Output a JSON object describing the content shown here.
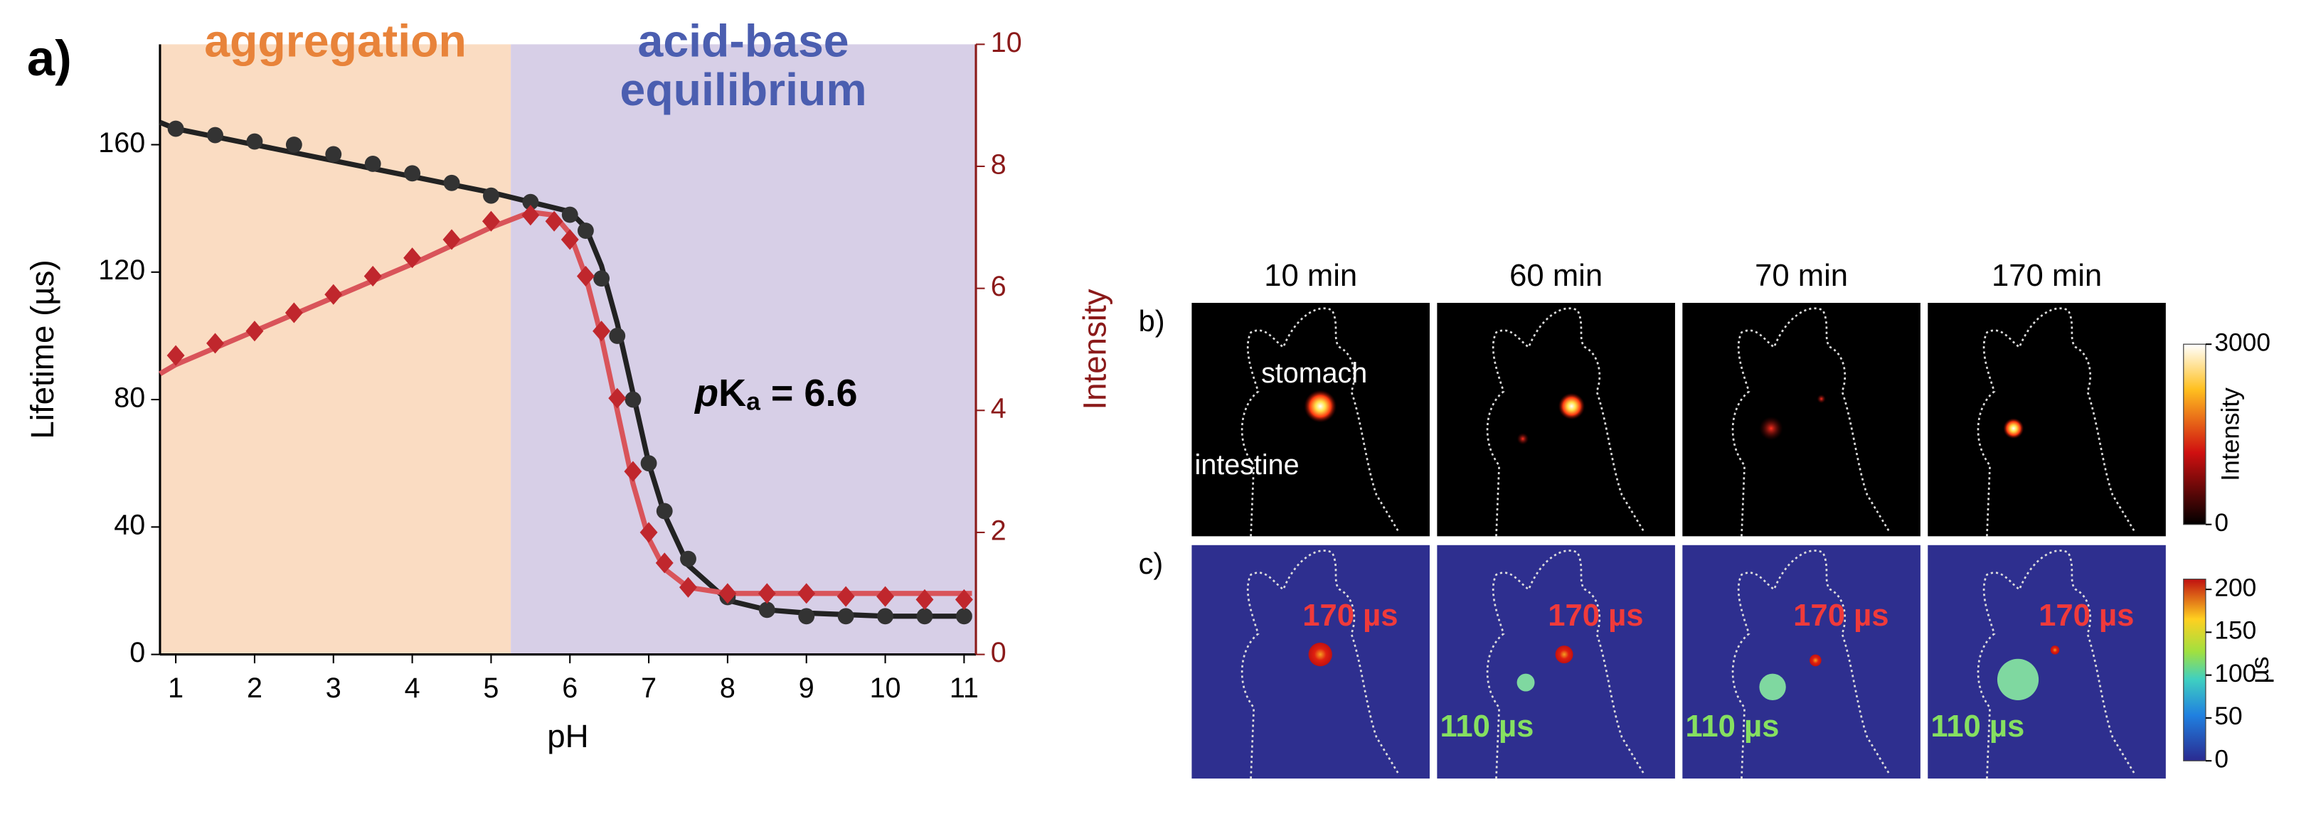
{
  "chart_data": {
    "type": "line",
    "panel_label": "a)",
    "xlabel": "pH",
    "ylabel": "Lifetime (µs)",
    "y2label": "Intensity",
    "y2color": "#8b1a1a",
    "xlim": [
      0.8,
      11.15
    ],
    "xticks": [
      1,
      2,
      3,
      4,
      5,
      6,
      7,
      8,
      9,
      10,
      11
    ],
    "ylim": [
      0,
      191.5
    ],
    "yticks": [
      0,
      40,
      80,
      120,
      160
    ],
    "y2lim": [
      0,
      10
    ],
    "y2ticks": [
      0,
      2,
      4,
      6,
      8,
      10
    ],
    "regions": [
      {
        "label": [
          "aggregation"
        ],
        "xlim": [
          0.8,
          5.25
        ],
        "color": "#fadcc2",
        "text_color": "#e8833a"
      },
      {
        "label": [
          "acid-base",
          "equilibrium"
        ],
        "xlim": [
          5.25,
          11.15
        ],
        "color": "#d7cfe7",
        "text_color": "#4b5eb0"
      }
    ],
    "annotation": [
      "p",
      "K",
      "a",
      " = 6.6"
    ],
    "series": [
      {
        "color": "#222222",
        "marker": "none",
        "x": [
          0.8,
          1,
          2,
          3,
          4,
          5,
          5.5,
          6,
          6.2,
          6.4,
          6.6,
          6.8,
          7,
          7.2,
          7.5,
          8,
          8.5,
          9,
          10,
          11.1
        ],
        "values": [
          167,
          165,
          160,
          155,
          150,
          145,
          142,
          139,
          134,
          122,
          104,
          82,
          60,
          44,
          28,
          17,
          14,
          13,
          12,
          12
        ]
      },
      {
        "color": "#d9545a",
        "marker": "none",
        "axis": "y2",
        "x": [
          0.8,
          1,
          2,
          3,
          4,
          5,
          5.5,
          5.8,
          6,
          6.2,
          6.4,
          6.6,
          6.8,
          7,
          7.2,
          7.5,
          8,
          8.5,
          9,
          10,
          11.1
        ],
        "values": [
          4.6,
          4.75,
          5.3,
          5.85,
          6.4,
          7.0,
          7.25,
          7.2,
          6.9,
          6.2,
          5.2,
          4.0,
          2.8,
          1.9,
          1.4,
          1.1,
          1.0,
          1.0,
          1.0,
          1.0,
          1.0
        ]
      },
      {
        "color": "#333333",
        "marker": "circle",
        "x": [
          1,
          1.5,
          2,
          2.5,
          3,
          3.5,
          4,
          4.5,
          5,
          5.5,
          6,
          6.2,
          6.4,
          6.6,
          6.8,
          7,
          7.2,
          7.5,
          8,
          8.5,
          9,
          9.5,
          10,
          10.5,
          11
        ],
        "values": [
          165,
          163,
          161,
          160,
          157,
          154,
          151,
          148,
          144,
          142,
          138,
          133,
          118,
          100,
          80,
          60,
          45,
          30,
          18,
          14,
          12,
          12,
          12,
          12,
          12
        ]
      },
      {
        "color": "#c0272d",
        "marker": "diamond",
        "axis": "y2",
        "x": [
          1,
          1.5,
          2,
          2.5,
          3,
          3.5,
          4,
          4.5,
          5,
          5.5,
          5.8,
          6,
          6.2,
          6.4,
          6.6,
          6.8,
          7,
          7.2,
          7.5,
          8,
          8.5,
          9,
          9.5,
          10,
          10.5,
          11
        ],
        "values": [
          4.9,
          5.1,
          5.3,
          5.6,
          5.9,
          6.2,
          6.5,
          6.8,
          7.1,
          7.2,
          7.1,
          6.8,
          6.2,
          5.3,
          4.2,
          3.0,
          2.0,
          1.5,
          1.1,
          1.0,
          1.0,
          1.0,
          0.95,
          0.95,
          0.9,
          0.9
        ]
      }
    ]
  },
  "imaging": {
    "times": [
      "10 min",
      "60 min",
      "70 min",
      "170 min"
    ],
    "row_labels": [
      "b)",
      "c)"
    ],
    "organ_labels": [
      "stomach",
      "intestine"
    ],
    "red_labels": [
      "170 µs",
      "170 µs",
      "170 µs",
      "170 µs"
    ],
    "green_labels": [
      "110 µs",
      "110 µs",
      "110 µs"
    ],
    "colorbars": [
      {
        "label": "Intensity",
        "lim": [
          0,
          3000
        ],
        "ticks": [
          0,
          3000
        ]
      },
      {
        "label": "µs",
        "lim": [
          0,
          212
        ],
        "ticks": [
          0,
          50,
          100,
          150,
          200
        ]
      }
    ]
  }
}
